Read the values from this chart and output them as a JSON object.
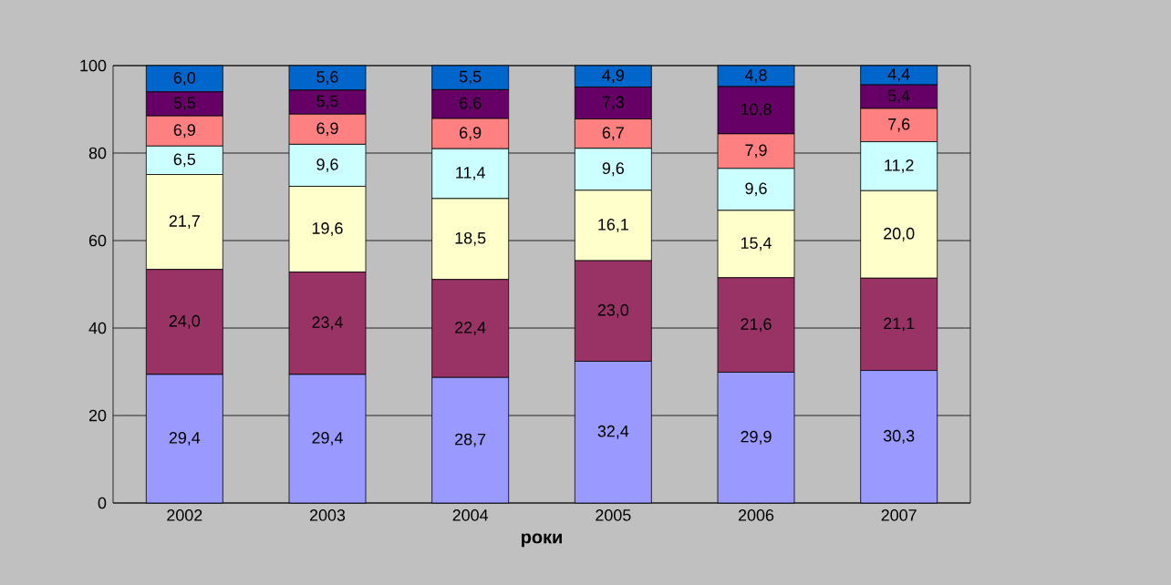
{
  "chart_data": {
    "type": "bar",
    "stacked": true,
    "xlabel": "роки",
    "categories": [
      "2002",
      "2003",
      "2004",
      "2005",
      "2006",
      "2007"
    ],
    "series": [
      {
        "color": "#9999ff",
        "values": [
          29.4,
          29.4,
          28.7,
          32.4,
          29.9,
          30.3
        ],
        "value_labels": [
          "29,4",
          "29,4",
          "28,7",
          "32,4",
          "29,9",
          "30,3"
        ]
      },
      {
        "color": "#993366",
        "values": [
          24.0,
          23.4,
          22.4,
          23.0,
          21.6,
          21.1
        ],
        "value_labels": [
          "24,0",
          "23,4",
          "22,4",
          "23,0",
          "21,6",
          "21,1"
        ]
      },
      {
        "color": "#ffffcc",
        "values": [
          21.7,
          19.6,
          18.5,
          16.1,
          15.4,
          20.0
        ],
        "value_labels": [
          "21,7",
          "19,6",
          "18,5",
          "16,1",
          "15,4",
          "20,0"
        ]
      },
      {
        "color": "#ccffff",
        "values": [
          6.5,
          9.6,
          11.4,
          9.6,
          9.6,
          11.2
        ],
        "value_labels": [
          "6,5",
          "9,6",
          "11,4",
          "9,6",
          "9,6",
          "11,2"
        ]
      },
      {
        "color": "#ff8080",
        "values": [
          6.9,
          6.9,
          6.9,
          6.7,
          7.9,
          7.6
        ],
        "value_labels": [
          "6,9",
          "6,9",
          "6,9",
          "6,7",
          "7,9",
          "7,6"
        ]
      },
      {
        "color": "#660066",
        "values": [
          5.5,
          5.5,
          6.6,
          7.3,
          10.8,
          5.4
        ],
        "value_labels": [
          "5,5",
          "5,5",
          "6,6",
          "7,3",
          "10,8",
          "5,4"
        ]
      },
      {
        "color": "#0066cc",
        "values": [
          6.0,
          5.6,
          5.5,
          4.9,
          4.8,
          4.4
        ],
        "value_labels": [
          "6,0",
          "5,6",
          "5,5",
          "4,9",
          "4,8",
          "4,4"
        ]
      }
    ],
    "ylim": [
      0,
      100
    ],
    "yticks": [
      0,
      20,
      40,
      60,
      80,
      100
    ],
    "grid": "y"
  }
}
